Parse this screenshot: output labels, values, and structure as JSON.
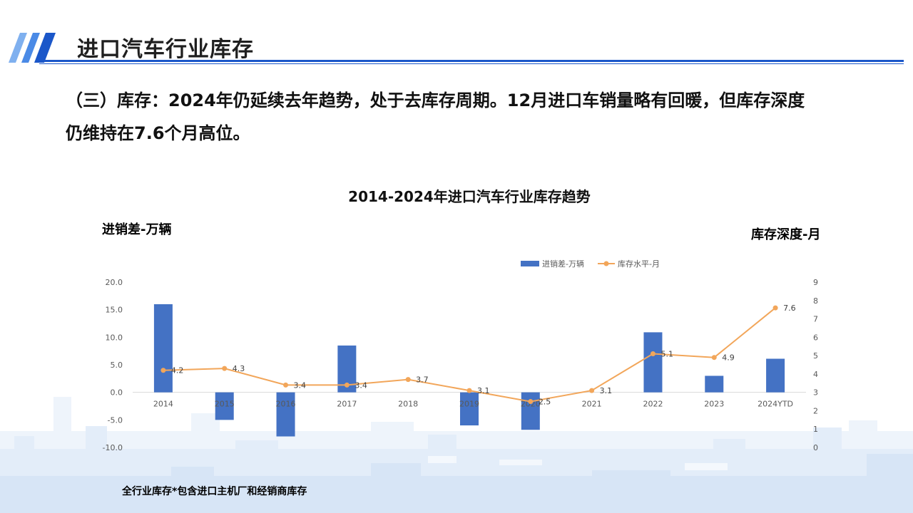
{
  "page": {
    "title": "进口汽车行业库存",
    "summary_line1": "（三）库存：2024年仍延续去年趋势，处于去库存周期。12月进口车销量略有回暖，但库存深度",
    "summary_line2": "仍维持在7.6个月高位。",
    "footnote": "全行业库存*包含进口主机厂和经销商库存",
    "accent_color": "#1b57c9"
  },
  "chart_data": {
    "type": "bar",
    "title": "2014-2024年进口汽车行业库存趋势",
    "ylabel": "进销差-万辆",
    "y2label": "库存深度-月",
    "categories": [
      "2014",
      "2015",
      "2016",
      "2017",
      "2018",
      "2019",
      "2020",
      "2021",
      "2022",
      "2023",
      "2024YTD"
    ],
    "series": [
      {
        "name": "进销差-万辆",
        "type": "bar",
        "axis": "left",
        "color": "#4472c4",
        "values": [
          16.0,
          -5.0,
          -8.0,
          8.5,
          0.0,
          -6.0,
          -6.8,
          0.0,
          10.9,
          3.0,
          6.1
        ]
      },
      {
        "name": "库存水平-月",
        "type": "line",
        "axis": "right",
        "color": "#f2a65a",
        "values": [
          4.2,
          4.3,
          3.4,
          3.4,
          3.7,
          3.1,
          2.5,
          3.1,
          5.1,
          4.9,
          7.6
        ],
        "labels": [
          "4.2",
          "4.3",
          "3.4",
          "3.4",
          "3.7",
          "3.1",
          "2.5",
          "3.1",
          "5.1",
          "4.9",
          "7.6"
        ]
      }
    ],
    "ylim": [
      -10,
      20
    ],
    "y_ticks": [
      "20.0",
      "15.0",
      "10.0",
      "5.0",
      "0.0",
      "-5.0",
      "-10.0"
    ],
    "y2lim": [
      0,
      9
    ],
    "y2_ticks": [
      "9",
      "8",
      "7",
      "6",
      "5",
      "4",
      "3",
      "2",
      "1",
      "0"
    ],
    "grid": false,
    "legend_position": "top-right"
  }
}
